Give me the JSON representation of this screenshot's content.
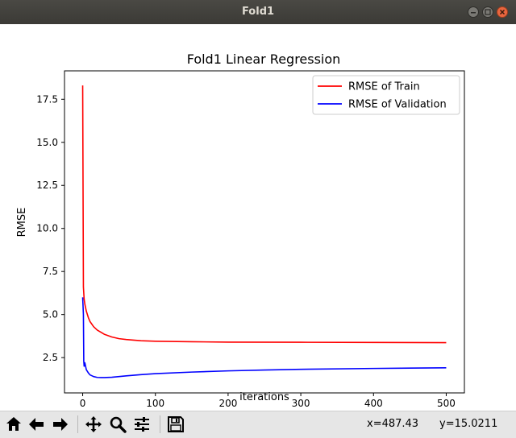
{
  "window": {
    "title": "Fold1"
  },
  "toolbar": {
    "buttons": [
      {
        "name": "home-icon"
      },
      {
        "name": "back-arrow-icon"
      },
      {
        "name": "forward-arrow-icon"
      },
      {
        "name": "pan-icon"
      },
      {
        "name": "zoom-icon"
      },
      {
        "name": "subplots-config-icon"
      },
      {
        "name": "save-icon"
      }
    ],
    "x_readout": "x=487.43",
    "y_readout": "y=15.0211"
  },
  "colors": {
    "train": "#ff0000",
    "validation": "#0000ff",
    "titlebar": "#3c3b37"
  },
  "chart_data": {
    "type": "line",
    "title": "Fold1 Linear Regression",
    "xlabel": "iterations",
    "ylabel": "RMSE",
    "xlim": [
      -25,
      525
    ],
    "ylim": [
      0.45,
      19.15
    ],
    "xticks": [
      0,
      100,
      200,
      300,
      400,
      500
    ],
    "xtick_labels": [
      "0",
      "100",
      "200",
      "300",
      "400",
      "500"
    ],
    "yticks": [
      2.5,
      5.0,
      7.5,
      10.0,
      12.5,
      15.0,
      17.5
    ],
    "ytick_labels": [
      "2.5",
      "5.0",
      "7.5",
      "10.0",
      "12.5",
      "15.0",
      "17.5"
    ],
    "grid": false,
    "legend_position": "upper-right",
    "series": [
      {
        "name": "RMSE of Train",
        "color": "#ff0000",
        "x": [
          0,
          1,
          2,
          3,
          5,
          8,
          10,
          15,
          20,
          30,
          40,
          50,
          60,
          80,
          100,
          150,
          200,
          300,
          400,
          500
        ],
        "y": [
          18.3,
          6.6,
          5.9,
          5.6,
          5.2,
          4.8,
          4.6,
          4.3,
          4.1,
          3.85,
          3.7,
          3.6,
          3.55,
          3.48,
          3.45,
          3.42,
          3.4,
          3.39,
          3.38,
          3.37
        ]
      },
      {
        "name": "RMSE of Validation",
        "color": "#0000ff",
        "x": [
          0,
          1,
          1.5,
          2,
          3,
          5,
          8,
          10,
          15,
          20,
          25,
          30,
          40,
          50,
          60,
          80,
          100,
          150,
          200,
          250,
          300,
          400,
          500
        ],
        "y": [
          6.0,
          5.0,
          2.3,
          2.0,
          2.2,
          1.8,
          1.6,
          1.5,
          1.4,
          1.35,
          1.34,
          1.34,
          1.36,
          1.4,
          1.44,
          1.51,
          1.57,
          1.66,
          1.73,
          1.78,
          1.82,
          1.87,
          1.91
        ]
      }
    ]
  }
}
